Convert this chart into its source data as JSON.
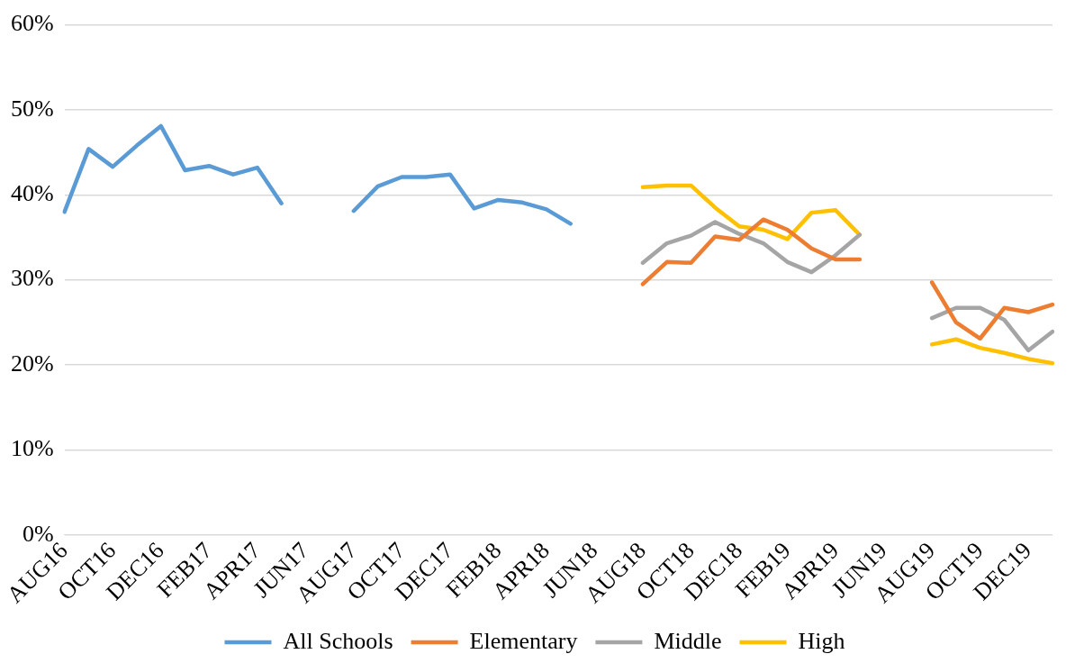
{
  "chart_data": {
    "type": "line",
    "categories": [
      "AUG16",
      null,
      "OCT16",
      null,
      "DEC16",
      null,
      "FEB17",
      null,
      "APR17",
      null,
      "JUN17",
      null,
      "AUG17",
      null,
      "OCT17",
      null,
      "DEC17",
      null,
      "FEB18",
      null,
      "APR18",
      null,
      "JUN18",
      null,
      "AUG18",
      null,
      "OCT18",
      null,
      "DEC18",
      null,
      "FEB19",
      null,
      "APR19",
      null,
      "JUN19",
      null,
      "AUG19",
      null,
      "OCT19",
      null,
      "DEC19",
      null
    ],
    "series": [
      {
        "name": "All Schools",
        "color": "#5b9bd5",
        "values": [
          38,
          45.4,
          43.3,
          45.8,
          48.1,
          42.9,
          43.4,
          42.4,
          43.2,
          39,
          null,
          null,
          38.1,
          41,
          42.1,
          42.1,
          42.4,
          38.4,
          39.4,
          39.1,
          38.3,
          36.6,
          null,
          null,
          null,
          null,
          null,
          null,
          null,
          null,
          null,
          null,
          null,
          null,
          null,
          null,
          null,
          null,
          null,
          null,
          null,
          null
        ]
      },
      {
        "name": "Elementary",
        "color": "#ed7d31",
        "values": [
          null,
          null,
          null,
          null,
          null,
          null,
          null,
          null,
          null,
          null,
          null,
          null,
          null,
          null,
          null,
          null,
          null,
          null,
          null,
          null,
          null,
          null,
          null,
          null,
          29.5,
          32.1,
          32,
          35.1,
          34.7,
          37.1,
          35.9,
          33.7,
          32.4,
          32.4,
          null,
          null,
          29.7,
          25,
          23.1,
          26.7,
          26.2,
          27.1
        ]
      },
      {
        "name": "Middle",
        "color": "#a5a5a5",
        "values": [
          null,
          null,
          null,
          null,
          null,
          null,
          null,
          null,
          null,
          null,
          null,
          null,
          null,
          null,
          null,
          null,
          null,
          null,
          null,
          null,
          null,
          null,
          null,
          null,
          32,
          34.3,
          35.2,
          36.8,
          35.4,
          34.3,
          32.1,
          30.9,
          32.9,
          35.3,
          null,
          null,
          25.5,
          26.7,
          26.7,
          25.3,
          21.7,
          23.9
        ]
      },
      {
        "name": "High",
        "color": "#ffc000",
        "values": [
          null,
          null,
          null,
          null,
          null,
          null,
          null,
          null,
          null,
          null,
          null,
          null,
          null,
          null,
          null,
          null,
          null,
          null,
          null,
          null,
          null,
          null,
          null,
          null,
          40.9,
          41.1,
          41.1,
          38.5,
          36.3,
          35.9,
          34.8,
          37.9,
          38.2,
          35.3,
          null,
          null,
          22.4,
          23,
          22,
          21.4,
          20.7,
          20.2
        ]
      }
    ],
    "ylim": [
      0,
      60
    ],
    "yticks": [
      {
        "value": 0,
        "label": "0%"
      },
      {
        "value": 10,
        "label": "10%"
      },
      {
        "value": 20,
        "label": "20%"
      },
      {
        "value": 30,
        "label": "30%"
      },
      {
        "value": 40,
        "label": "40%"
      },
      {
        "value": 50,
        "label": "50%"
      },
      {
        "value": 60,
        "label": "60%"
      }
    ],
    "grid": "y",
    "legend": "bottom",
    "marker": "none",
    "line_style": "solid"
  }
}
